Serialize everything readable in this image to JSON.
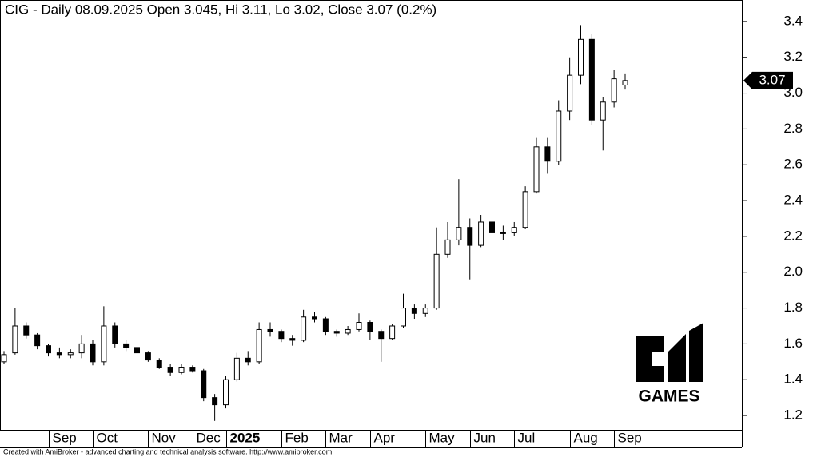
{
  "chart_data": {
    "type": "candlestick",
    "title": "CIG - Daily 08.09.2025 Open 3.045, Hi 3.11, Lo 3.02, Close 3.07 (0.2%)",
    "footer": "Created with AmiBroker - advanced charting and technical analysis software. http://www.amibroker.com",
    "logo_text": "GAMES",
    "categories": [
      null,
      null,
      null,
      null,
      "Sep",
      null,
      null,
      null,
      "Oct",
      null,
      null,
      null,
      null,
      "Nov",
      null,
      null,
      null,
      "Dec",
      null,
      null,
      "2025",
      null,
      null,
      null,
      null,
      "Feb",
      null,
      null,
      null,
      "Mar",
      null,
      null,
      null,
      "Apr",
      null,
      null,
      null,
      null,
      "May",
      null,
      null,
      null,
      "Jun",
      null,
      null,
      null,
      "Jul",
      null,
      null,
      null,
      null,
      "Aug",
      null,
      null,
      null,
      "Sep",
      null
    ],
    "open": [
      1.5,
      1.55,
      1.7,
      1.65,
      1.59,
      1.55,
      1.54,
      1.55,
      1.6,
      1.5,
      1.7,
      1.6,
      1.58,
      1.55,
      1.51,
      1.47,
      1.44,
      1.47,
      1.45,
      1.3,
      1.26,
      1.4,
      1.52,
      1.5,
      1.68,
      1.67,
      1.63,
      1.62,
      1.75,
      1.74,
      1.67,
      1.66,
      1.68,
      1.72,
      1.67,
      1.63,
      1.7,
      1.8,
      1.77,
      1.8,
      2.1,
      2.18,
      2.25,
      2.15,
      2.28,
      2.22,
      2.22,
      2.25,
      2.45,
      2.7,
      2.62,
      2.9,
      3.1,
      3.3,
      2.85,
      2.95,
      3.045
    ],
    "high": [
      1.56,
      1.8,
      1.72,
      1.66,
      1.6,
      1.58,
      1.57,
      1.65,
      1.62,
      1.81,
      1.72,
      1.62,
      1.59,
      1.56,
      1.52,
      1.49,
      1.49,
      1.48,
      1.46,
      1.32,
      1.42,
      1.55,
      1.56,
      1.72,
      1.72,
      1.68,
      1.65,
      1.79,
      1.78,
      1.75,
      1.68,
      1.7,
      1.77,
      1.73,
      1.68,
      1.71,
      1.88,
      1.82,
      1.82,
      2.25,
      2.28,
      2.52,
      2.3,
      2.32,
      2.3,
      2.26,
      2.28,
      2.48,
      2.75,
      2.75,
      2.96,
      3.2,
      3.38,
      3.33,
      2.98,
      3.13,
      3.11
    ],
    "low": [
      1.49,
      1.54,
      1.63,
      1.57,
      1.53,
      1.52,
      1.52,
      1.52,
      1.48,
      1.48,
      1.58,
      1.56,
      1.53,
      1.5,
      1.46,
      1.42,
      1.43,
      1.44,
      1.28,
      1.17,
      1.24,
      1.39,
      1.48,
      1.49,
      1.64,
      1.61,
      1.59,
      1.61,
      1.72,
      1.65,
      1.64,
      1.65,
      1.67,
      1.62,
      1.5,
      1.62,
      1.69,
      1.74,
      1.75,
      1.79,
      2.08,
      2.15,
      1.96,
      2.14,
      2.12,
      2.18,
      2.2,
      2.24,
      2.44,
      2.55,
      2.6,
      2.85,
      3.05,
      2.82,
      2.68,
      2.92,
      3.02
    ],
    "close": [
      1.54,
      1.7,
      1.65,
      1.59,
      1.55,
      1.54,
      1.55,
      1.6,
      1.5,
      1.7,
      1.6,
      1.58,
      1.55,
      1.51,
      1.47,
      1.44,
      1.47,
      1.45,
      1.3,
      1.26,
      1.4,
      1.52,
      1.5,
      1.68,
      1.67,
      1.63,
      1.62,
      1.75,
      1.74,
      1.67,
      1.66,
      1.68,
      1.72,
      1.67,
      1.63,
      1.7,
      1.8,
      1.77,
      1.8,
      2.1,
      2.18,
      2.25,
      2.15,
      2.28,
      2.22,
      2.22,
      2.25,
      2.45,
      2.7,
      2.62,
      2.9,
      3.1,
      3.3,
      2.85,
      2.95,
      3.08,
      3.07
    ],
    "last_price": 3.07,
    "ylim": [
      1.12,
      3.52
    ],
    "yticks": [
      1.2,
      1.4,
      1.6,
      1.8,
      {
        "value": 2,
        "label": "2.0"
      },
      2.2,
      2.4,
      2.6,
      2.8,
      {
        "value": 3,
        "label": "3.0"
      },
      3.2,
      3.4
    ],
    "color": "#000000"
  }
}
